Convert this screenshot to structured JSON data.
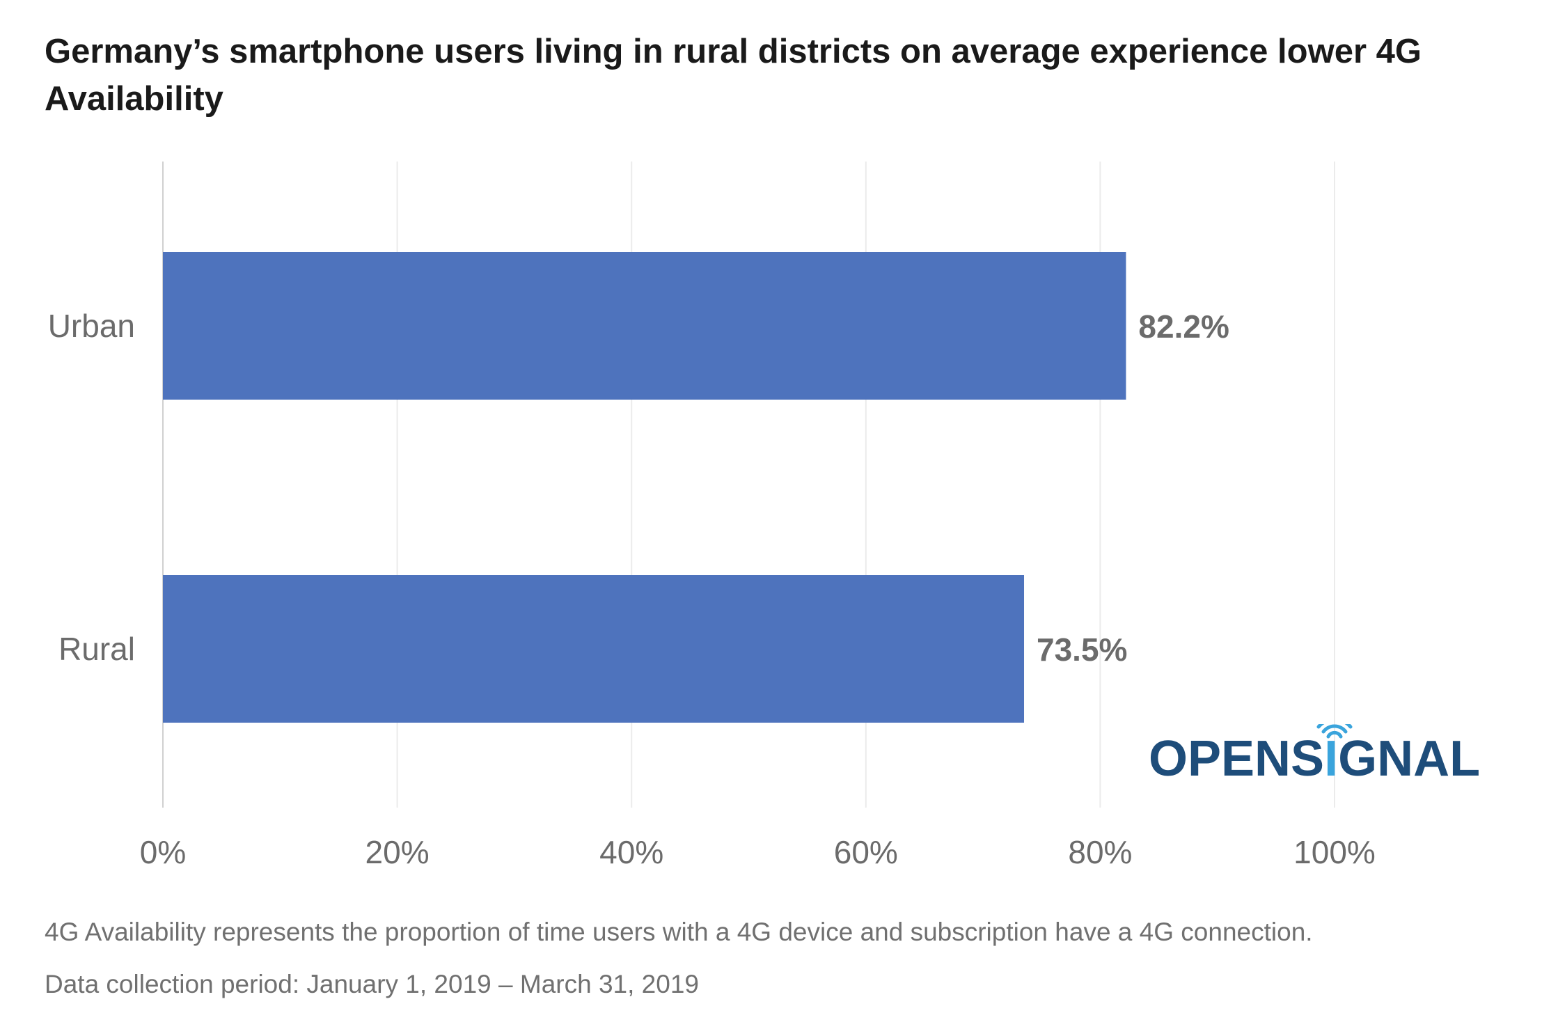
{
  "chart_data": {
    "type": "bar",
    "orientation": "horizontal",
    "title": "Germany’s smartphone users living in rural districts on average experience lower 4G Availability",
    "categories": [
      "Urban",
      "Rural"
    ],
    "values": [
      82.2,
      73.5
    ],
    "data_labels": [
      "82.2%",
      "73.5%"
    ],
    "x_ticks": [
      "0%",
      "20%",
      "40%",
      "60%",
      "80%",
      "100%"
    ],
    "xlim": [
      0,
      100
    ],
    "grid": "vertical",
    "bar_color": "#4e73bd",
    "xlabel": "",
    "ylabel": ""
  },
  "footnotes": {
    "definition": "4G Availability represents the proportion of time users with a 4G device and subscription have a 4G connection.",
    "period": "Data collection period: January 1, 2019 – March 31, 2019"
  },
  "logo": {
    "text_before": "OPENS",
    "text_i": "I",
    "text_after": "GNAL",
    "color": "#1e4d7a",
    "accent_color": "#3aa4dc"
  }
}
